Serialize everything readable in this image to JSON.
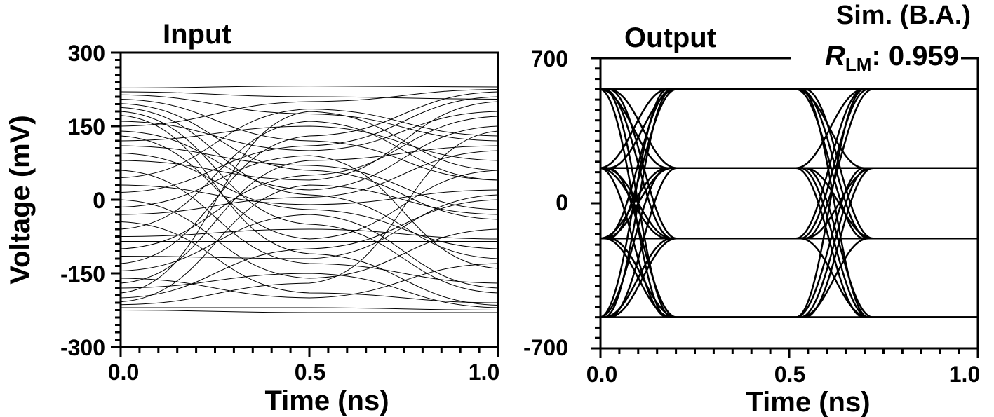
{
  "chart_data": [
    {
      "type": "line",
      "title": "Input",
      "xlabel": "Time (ns)",
      "ylabel": "Voltage (mV)",
      "xlim": [
        0.0,
        1.0
      ],
      "ylim": [
        -300,
        300
      ],
      "x_ticks": [
        "0.0",
        "0.5",
        "1.0"
      ],
      "y_ticks": [
        "300",
        "150",
        "0",
        "-150",
        "-300"
      ],
      "grid": false,
      "series": [
        {
          "x": [
            0.0,
            0.5,
            1.0
          ],
          "values": [
            228,
            232,
            230
          ]
        },
        {
          "x": [
            0.0,
            0.5,
            1.0
          ],
          "values": [
            220,
            210,
            205
          ]
        },
        {
          "x": [
            0.0,
            0.5,
            1.0
          ],
          "values": [
            214,
            175,
            120
          ]
        },
        {
          "x": [
            0.0,
            0.5,
            1.0
          ],
          "values": [
            205,
            120,
            40
          ]
        },
        {
          "x": [
            0.0,
            0.5,
            1.0
          ],
          "values": [
            196,
            60,
            -40
          ]
        },
        {
          "x": [
            0.0,
            0.5,
            1.0
          ],
          "values": [
            188,
            10,
            -120
          ]
        },
        {
          "x": [
            0.0,
            0.5,
            1.0
          ],
          "values": [
            180,
            -50,
            -190
          ]
        },
        {
          "x": [
            0.0,
            0.5,
            1.0
          ],
          "values": [
            172,
            -110,
            -215
          ]
        },
        {
          "x": [
            0.0,
            0.5,
            1.0
          ],
          "values": [
            160,
            100,
            180
          ]
        },
        {
          "x": [
            0.0,
            0.5,
            1.0
          ],
          "values": [
            150,
            200,
            225
          ]
        },
        {
          "x": [
            0.0,
            0.5,
            1.0
          ],
          "values": [
            140,
            20,
            150
          ]
        },
        {
          "x": [
            0.0,
            0.5,
            1.0
          ],
          "values": [
            130,
            -80,
            60
          ]
        },
        {
          "x": [
            0.0,
            0.5,
            1.0
          ],
          "values": [
            120,
            150,
            80
          ]
        },
        {
          "x": [
            0.0,
            0.5,
            1.0
          ],
          "values": [
            110,
            70,
            -20
          ]
        },
        {
          "x": [
            0.0,
            0.5,
            1.0
          ],
          "values": [
            95,
            -20,
            -100
          ]
        },
        {
          "x": [
            0.0,
            0.5,
            1.0
          ],
          "values": [
            80,
            40,
            200
          ]
        },
        {
          "x": [
            0.0,
            0.5,
            1.0
          ],
          "values": [
            75,
            75,
            75
          ]
        },
        {
          "x": [
            0.0,
            0.5,
            1.0
          ],
          "values": [
            60,
            -130,
            -170
          ]
        },
        {
          "x": [
            0.0,
            0.5,
            1.0
          ],
          "values": [
            45,
            185,
            130
          ]
        },
        {
          "x": [
            0.0,
            0.5,
            1.0
          ],
          "values": [
            30,
            -10,
            20
          ]
        },
        {
          "x": [
            0.0,
            0.5,
            1.0
          ],
          "values": [
            15,
            110,
            210
          ]
        },
        {
          "x": [
            0.0,
            0.5,
            1.0
          ],
          "values": [
            0,
            -160,
            -60
          ]
        },
        {
          "x": [
            0.0,
            0.5,
            1.0
          ],
          "values": [
            -15,
            90,
            -140
          ]
        },
        {
          "x": [
            0.0,
            0.5,
            1.0
          ],
          "values": [
            -30,
            5,
            100
          ]
        },
        {
          "x": [
            0.0,
            0.5,
            1.0
          ],
          "values": [
            -45,
            -190,
            -210
          ]
        },
        {
          "x": [
            0.0,
            0.5,
            1.0
          ],
          "values": [
            -60,
            160,
            40
          ]
        },
        {
          "x": [
            0.0,
            0.5,
            1.0
          ],
          "values": [
            -75,
            -60,
            -80
          ]
        },
        {
          "x": [
            0.0,
            0.5,
            1.0
          ],
          "values": [
            -85,
            -85,
            -85
          ]
        },
        {
          "x": [
            0.0,
            0.5,
            1.0
          ],
          "values": [
            -100,
            50,
            170
          ]
        },
        {
          "x": [
            0.0,
            0.5,
            1.0
          ],
          "values": [
            -115,
            -120,
            10
          ]
        },
        {
          "x": [
            0.0,
            0.5,
            1.0
          ],
          "values": [
            -130,
            130,
            220
          ]
        },
        {
          "x": [
            0.0,
            0.5,
            1.0
          ],
          "values": [
            -145,
            -30,
            -180
          ]
        },
        {
          "x": [
            0.0,
            0.5,
            1.0
          ],
          "values": [
            -160,
            -200,
            -130
          ]
        },
        {
          "x": [
            0.0,
            0.5,
            1.0
          ],
          "values": [
            -170,
            80,
            110
          ]
        },
        {
          "x": [
            0.0,
            0.5,
            1.0
          ],
          "values": [
            -180,
            -150,
            -220
          ]
        },
        {
          "x": [
            0.0,
            0.5,
            1.0
          ],
          "values": [
            -190,
            180,
            60
          ]
        },
        {
          "x": [
            0.0,
            0.5,
            1.0
          ],
          "values": [
            -200,
            -100,
            0
          ]
        },
        {
          "x": [
            0.0,
            0.5,
            1.0
          ],
          "values": [
            -208,
            30,
            -30
          ]
        },
        {
          "x": [
            0.0,
            0.5,
            1.0
          ],
          "values": [
            -214,
            -170,
            140
          ]
        },
        {
          "x": [
            0.0,
            0.5,
            1.0
          ],
          "values": [
            -220,
            -220,
            -225
          ]
        },
        {
          "x": [
            0.0,
            0.5,
            1.0
          ],
          "values": [
            -225,
            -230,
            -230
          ]
        }
      ]
    },
    {
      "type": "line",
      "title": "Output",
      "xlabel": "Time (ns)",
      "ylabel": "",
      "xlim": [
        0.0,
        1.0
      ],
      "ylim": [
        -700,
        700
      ],
      "x_ticks": [
        "0.0",
        "0.5",
        "1.0"
      ],
      "y_ticks": [
        "700",
        "0",
        "-700"
      ],
      "grid": false,
      "levels": [
        550,
        170,
        -170,
        -550
      ],
      "transition_centers": [
        0.1,
        0.62
      ],
      "annotation": {
        "text": "Sim. (B.A.)",
        "metric_symbol": "R",
        "metric_subscript": "LM",
        "metric_value": ": 0.959",
        "metric_color": "#ff0000"
      }
    }
  ]
}
